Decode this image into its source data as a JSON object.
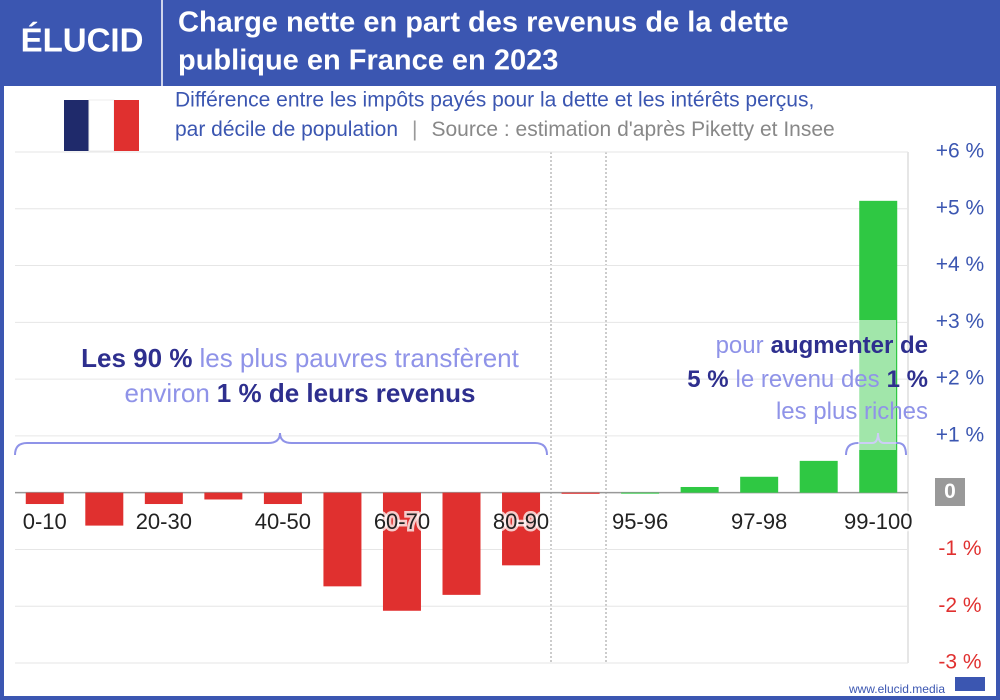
{
  "logo": "ÉLUCID",
  "footer": "www.elucid.media",
  "chart_data": {
    "type": "bar",
    "title": [
      "Charge nette en part des revenus de la dette",
      "publique en France en 2023"
    ],
    "subtitle": [
      "Différence entre les impôts payés pour la dette et les intérêts perçus,",
      "par décile de population"
    ],
    "source": "Source : estimation d'après Piketty et Insee",
    "categories": [
      "0-10",
      null,
      "20-30",
      null,
      "40-50",
      null,
      "60-70",
      null,
      "80-90",
      null,
      "95-96",
      null,
      "97-98",
      null,
      "99-100"
    ],
    "values": [
      -0.2,
      -0.58,
      -0.2,
      -0.12,
      -0.2,
      -1.65,
      -2.08,
      -1.8,
      -1.28,
      -0.02,
      0,
      0.1,
      0.28,
      0.56,
      5.14
    ],
    "color_positive": "#2fc843",
    "color_negative": "#e0302f",
    "ylim": [
      -3,
      6
    ],
    "yticks": [
      {
        "value": 6,
        "label": "+6 %"
      },
      {
        "value": 5,
        "label": "+5 %"
      },
      {
        "value": 4,
        "label": "+4 %"
      },
      {
        "value": 3,
        "label": "+3 %"
      },
      {
        "value": 2,
        "label": "+2 %"
      },
      {
        "value": 1,
        "label": "+1 %"
      },
      0,
      {
        "value": -1,
        "label": "-1 %"
      },
      {
        "value": -2,
        "label": "-2 %"
      },
      {
        "value": -3,
        "label": "-3 %"
      }
    ],
    "grid": true,
    "annotations": {
      "left": [
        [
          "Les 90 %",
          "les plus pauvres transfèrent"
        ],
        [
          "environ",
          "1 % de leurs revenus"
        ]
      ],
      "right": [
        [
          "pour",
          "augmenter de"
        ],
        [
          "5 %",
          "le revenu des",
          "1 %"
        ],
        [
          "les plus riches"
        ]
      ]
    }
  }
}
